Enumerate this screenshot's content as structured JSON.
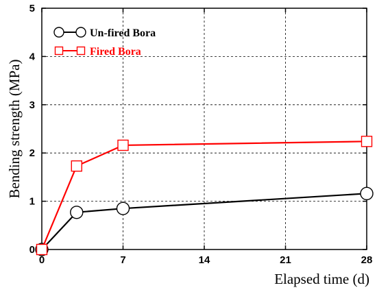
{
  "chart_data": {
    "type": "line",
    "title": "",
    "xlabel": "Elapsed time (d)",
    "ylabel": "Bending strength (MPa)",
    "xlim": [
      0,
      28
    ],
    "ylim": [
      0,
      5
    ],
    "xticks": [
      0,
      7,
      14,
      21,
      28
    ],
    "yticks": [
      0,
      1,
      2,
      3,
      4,
      5
    ],
    "xtick_labels": [
      "0",
      "7",
      "14",
      "21",
      "28"
    ],
    "ytick_labels": [
      "0",
      "1",
      "2",
      "3",
      "4",
      "5"
    ],
    "grid": true,
    "legend_position": "top-left",
    "series": [
      {
        "name": "Un-fired Bora",
        "color": "#000000",
        "marker": "circle",
        "x": [
          0,
          3,
          7,
          28
        ],
        "y": [
          0.0,
          0.77,
          0.85,
          1.16
        ]
      },
      {
        "name": "Fired Bora",
        "color": "#ff0000",
        "marker": "square",
        "x": [
          0,
          3,
          7,
          28
        ],
        "y": [
          0.0,
          1.73,
          2.16,
          2.24
        ]
      }
    ]
  }
}
